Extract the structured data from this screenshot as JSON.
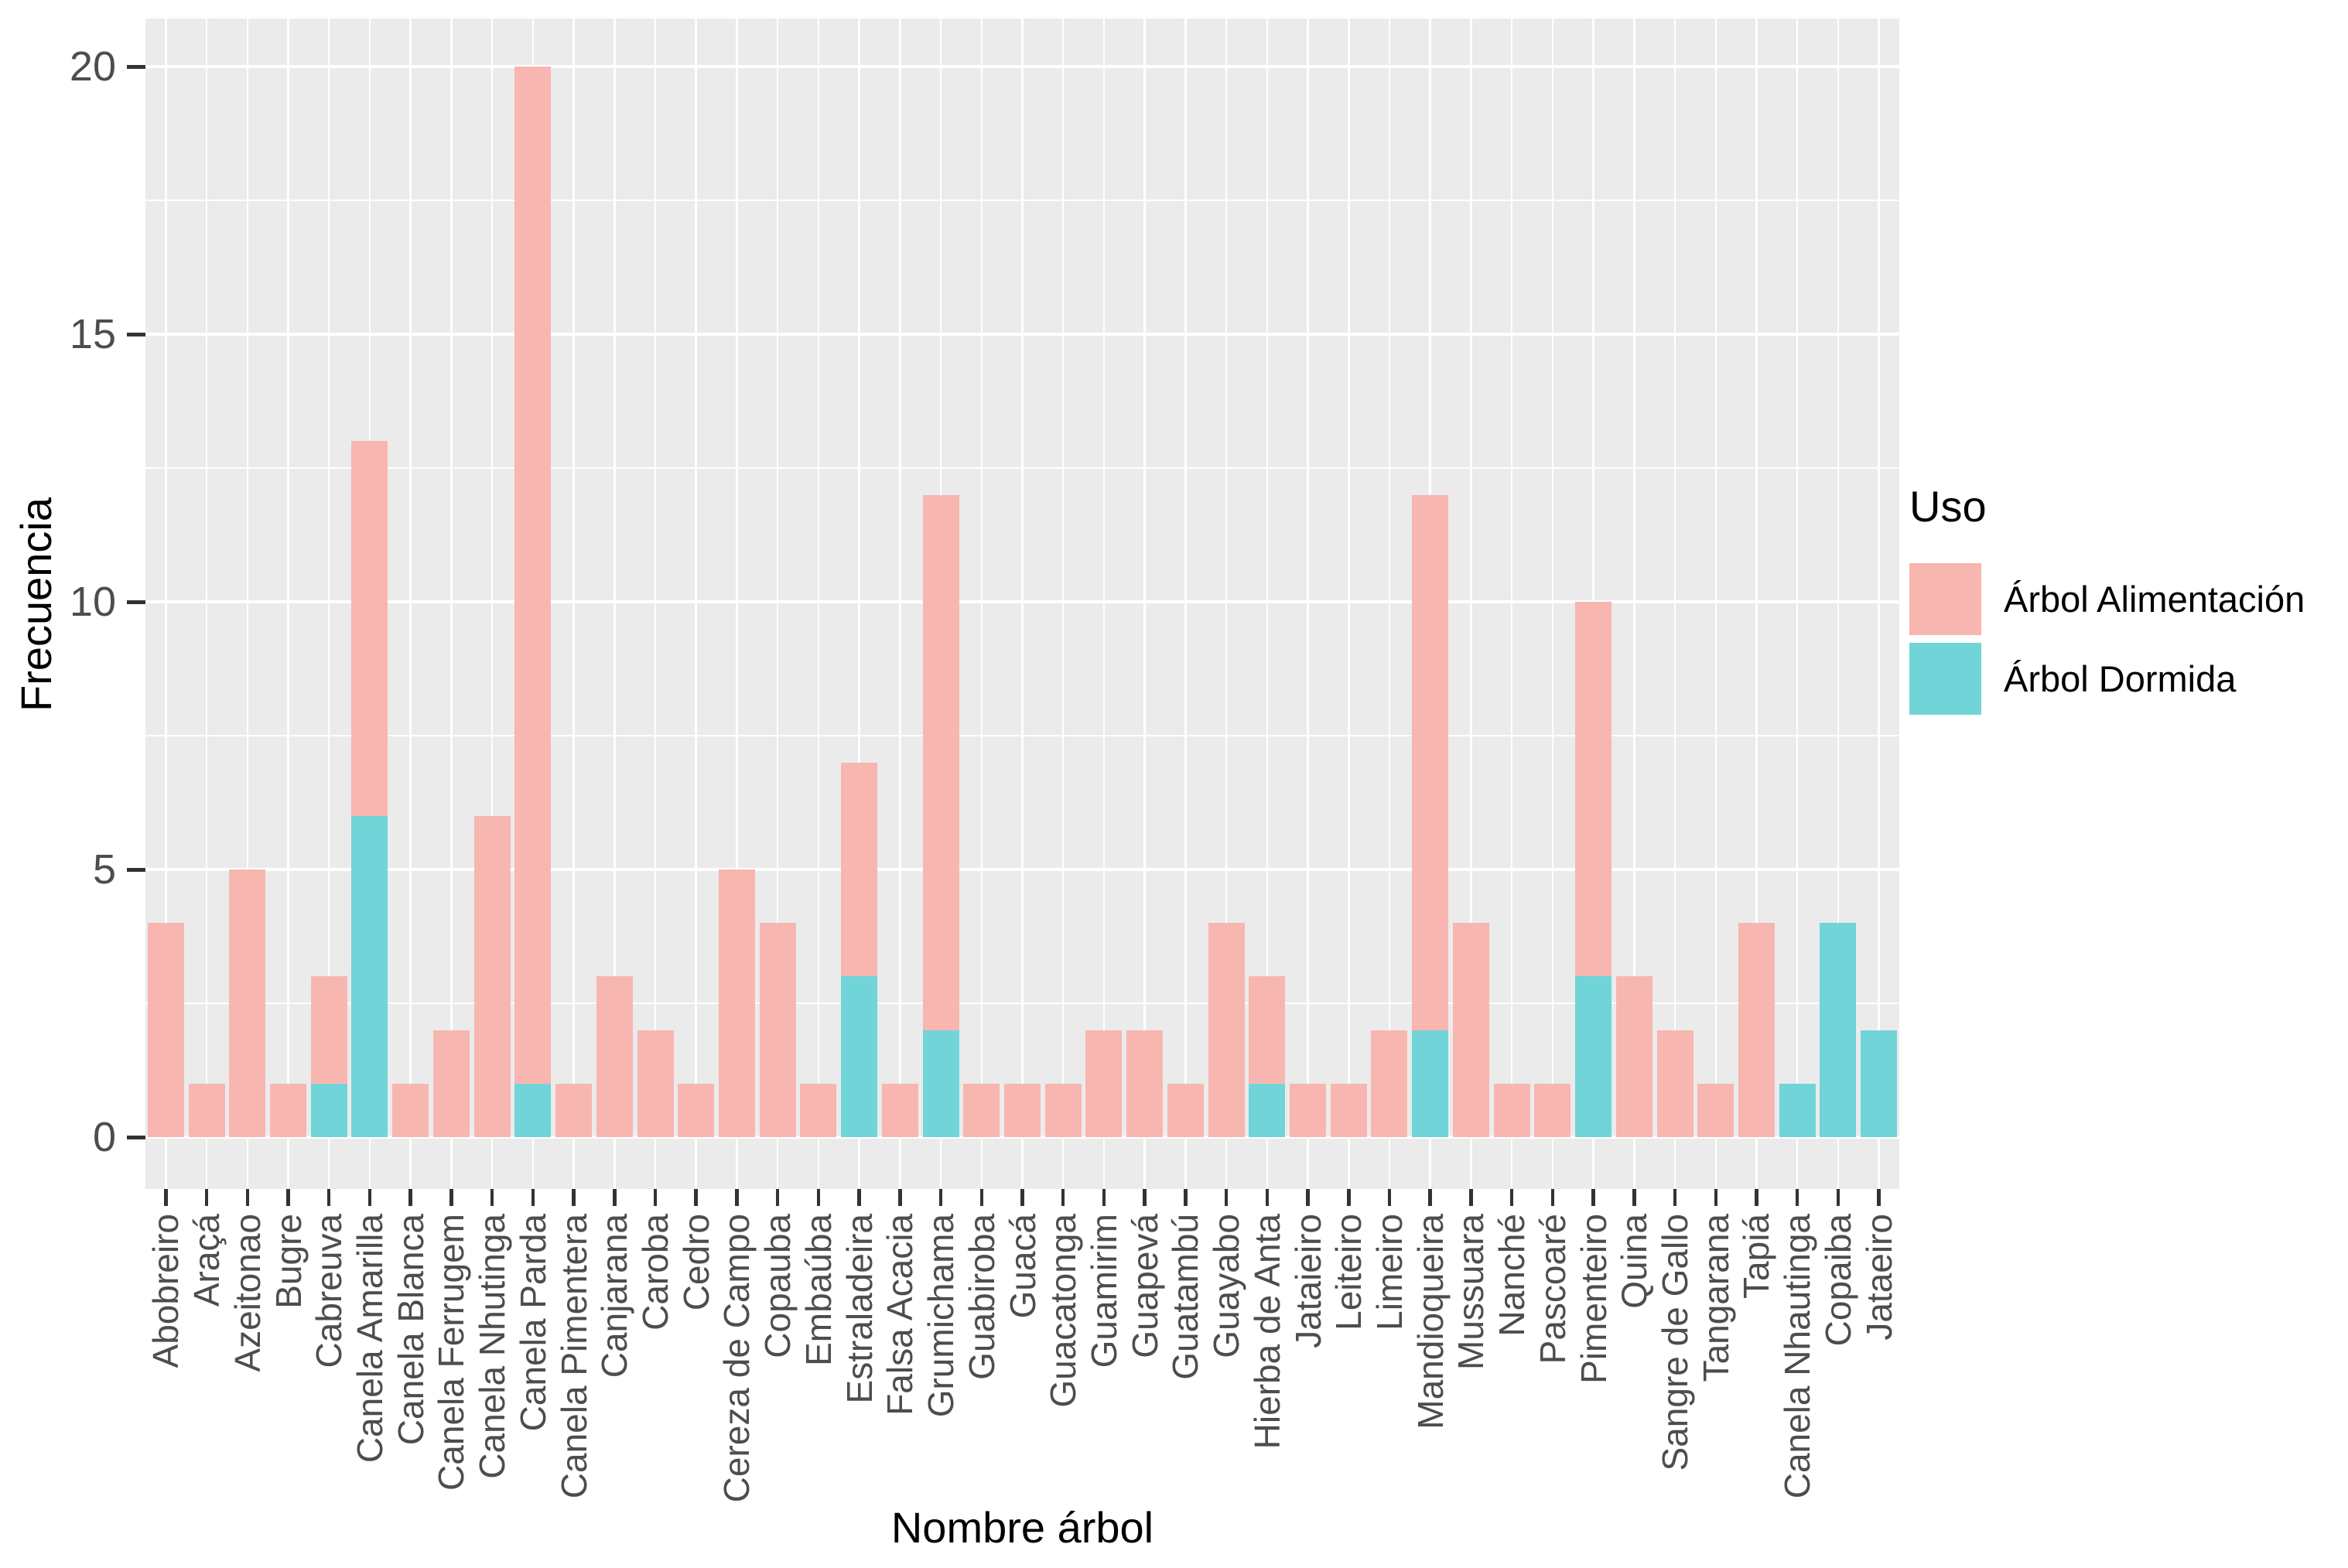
{
  "chart_data": {
    "type": "bar",
    "stacked": true,
    "title": "",
    "xlabel": "Nombre árbol",
    "ylabel": "Frecuencia",
    "legend_title": "Uso",
    "legend_position": "right",
    "grid": true,
    "ylim": [
      0,
      20
    ],
    "y_ticks": [
      "0",
      "5",
      "10",
      "15",
      "20"
    ],
    "y_minor_ticks": [
      2.5,
      7.5,
      12.5,
      17.5
    ],
    "categories": [
      "Abobreiro",
      "Araçá",
      "Azeitonao",
      "Bugre",
      "Cabreuva",
      "Canela Amarilla",
      "Canela Blanca",
      "Canela Ferrugem",
      "Canela Nhutinga",
      "Canela Parda",
      "Canela Pimentera",
      "Canjarana",
      "Caroba",
      "Cedro",
      "Cereza de Campo",
      "Copauba",
      "Embaúba",
      "Estraladeira",
      "Falsa Acacia",
      "Grumichama",
      "Guabiroba",
      "Guacá",
      "Guacatonga",
      "Guamirim",
      "Guapevá",
      "Guatambú",
      "Guayabo",
      "Hierba de Anta",
      "Jataieiro",
      "Leiteiro",
      "Limeiro",
      "Mandioqueira",
      "Mussuara",
      "Nanché",
      "Pascoaré",
      "Pimenteiro",
      "Quina",
      "Sangre de Gallo",
      "Tangarana",
      "Tapiá",
      "Canela Nhautinga",
      "Copaiba",
      "Jataeiro"
    ],
    "series": [
      {
        "name": "Árbol Alimentación",
        "color": "#F8B6B1",
        "values": [
          4,
          1,
          5,
          1,
          2,
          7,
          1,
          2,
          6,
          19,
          1,
          3,
          2,
          1,
          5,
          4,
          1,
          4,
          1,
          10,
          1,
          1,
          1,
          2,
          2,
          1,
          4,
          2,
          1,
          1,
          2,
          10,
          4,
          1,
          1,
          7,
          3,
          2,
          1,
          4,
          0,
          0,
          0
        ]
      },
      {
        "name": "Árbol Dormida",
        "color": "#70D4D8",
        "values": [
          0,
          0,
          0,
          0,
          1,
          6,
          0,
          0,
          0,
          1,
          0,
          0,
          0,
          0,
          0,
          0,
          0,
          3,
          0,
          2,
          0,
          0,
          0,
          0,
          0,
          0,
          0,
          1,
          0,
          0,
          0,
          2,
          0,
          0,
          0,
          3,
          0,
          0,
          0,
          0,
          1,
          4,
          2
        ]
      }
    ],
    "stacking_order_bottom_to_top": [
      "Árbol Dormida",
      "Árbol Alimentación"
    ]
  },
  "colors": {
    "panel_background": "#EBEBEB",
    "gridline": "#FFFFFF",
    "axis_tick_text": "#4D4D4D",
    "axis_title_text": "#000000",
    "tick_mark": "#333333",
    "series_alimentacion": "#F8B6B1",
    "series_dormida": "#70D4D8"
  }
}
